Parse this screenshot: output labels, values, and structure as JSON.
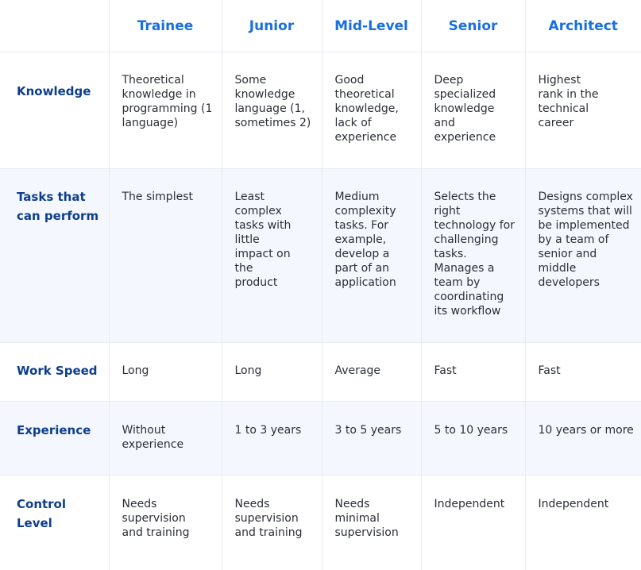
{
  "columns": [
    "Trainee",
    "Junior",
    "Mid-Level",
    "Senior",
    "Architect"
  ],
  "rows": [
    {
      "label": "Knowledge",
      "cells": [
        "Theoretical knowledge in programming (1 language)",
        "Some knowledge language (1, sometimes 2)",
        "Good theoretical knowledge, lack of experience",
        "Deep specialized knowledge and experience",
        "Highest rank in the technical career"
      ]
    },
    {
      "label": "Tasks that can perform",
      "cells": [
        "The simplest",
        "Least complex tasks with little impact on the product",
        "Medium complexity tasks. For example, develop a part of an application",
        "Selects the right technology for challenging tasks. Manages a team by coordinating its workflow",
        "Designs complex systems that will be implemented by a team of senior and middle developers"
      ]
    },
    {
      "label": "Work Speed",
      "cells": [
        "Long",
        "Long",
        "Average",
        "Fast",
        "Fast"
      ]
    },
    {
      "label": "Experience",
      "cells": [
        "Without experience",
        "1 to 3 years",
        "3 to 5 years",
        "5 to 10 years",
        "10 years or more"
      ]
    },
    {
      "label": "Control Level",
      "cells": [
        "Needs supervision and training",
        "Needs supervision and training",
        "Needs minimal supervision",
        "Independent",
        "Independent"
      ]
    }
  ]
}
